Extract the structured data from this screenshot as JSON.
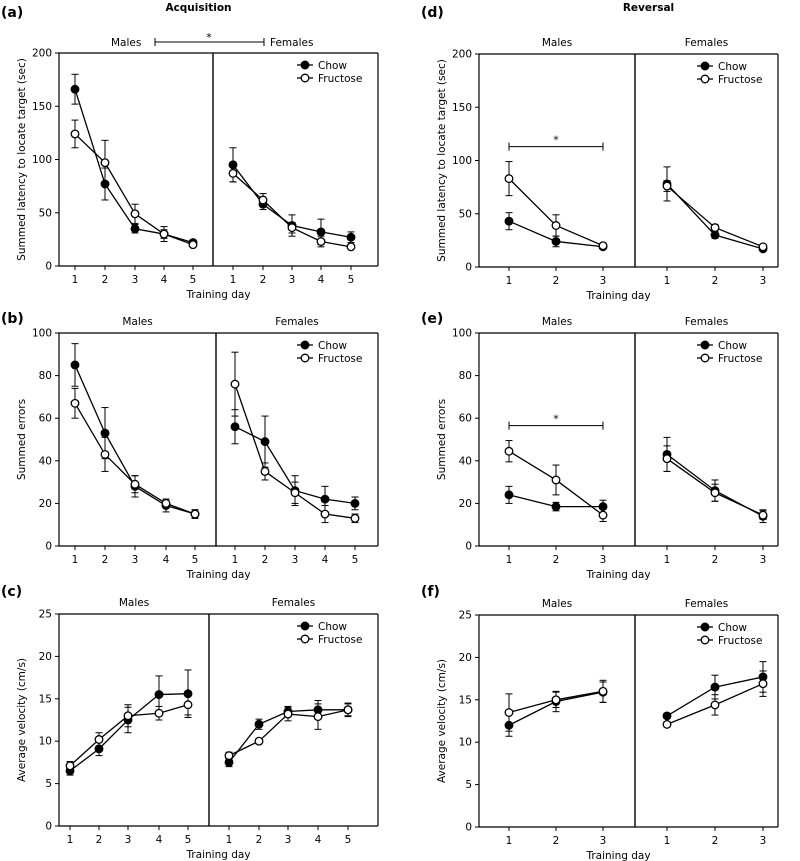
{
  "chart_data": [
    {
      "type": "line",
      "panel_label": "(a)",
      "title": "Acquisition",
      "groups": [
        "Males",
        "Females"
      ],
      "x": [
        1,
        2,
        3,
        4,
        5
      ],
      "xlabel": "Training day",
      "ylabel": "Summed latency to locate target (sec)",
      "ylim": [
        0,
        200
      ],
      "yticks": [
        0,
        50,
        100,
        150,
        200
      ],
      "legend": {
        "position": "top-right",
        "entries": [
          "Chow",
          "Fructose"
        ]
      },
      "significance": {
        "label": "*",
        "left": "Males",
        "right": "Females"
      },
      "series": [
        {
          "name": "Chow",
          "marker": "filled",
          "group": "Males",
          "values": [
            166,
            77,
            35,
            30,
            22
          ],
          "errors": [
            14,
            15,
            4,
            7,
            2
          ]
        },
        {
          "name": "Fructose",
          "marker": "open",
          "group": "Males",
          "values": [
            124,
            97,
            49,
            30,
            20
          ],
          "errors": [
            13,
            21,
            9,
            4,
            2
          ]
        },
        {
          "name": "Chow",
          "marker": "filled",
          "group": "Females",
          "values": [
            95,
            58,
            38,
            32,
            27
          ],
          "errors": [
            16,
            5,
            10,
            12,
            5
          ]
        },
        {
          "name": "Fructose",
          "marker": "open",
          "group": "Females",
          "values": [
            87,
            62,
            36,
            23,
            18
          ],
          "errors": [
            8,
            6,
            5,
            5,
            2
          ]
        }
      ]
    },
    {
      "type": "line",
      "panel_label": "(b)",
      "title": "",
      "groups": [
        "Males",
        "Females"
      ],
      "x": [
        1,
        2,
        3,
        4,
        5
      ],
      "xlabel": "Training day",
      "ylabel": "Summed errors",
      "ylim": [
        0,
        100
      ],
      "yticks": [
        0,
        20,
        40,
        60,
        80,
        100
      ],
      "legend": {
        "position": "top-right",
        "entries": [
          "Chow",
          "Fructose"
        ]
      },
      "series": [
        {
          "name": "Chow",
          "marker": "filled",
          "group": "Males",
          "values": [
            85,
            53,
            28,
            19,
            15
          ],
          "errors": [
            10,
            12,
            5,
            3,
            2
          ]
        },
        {
          "name": "Fructose",
          "marker": "open",
          "group": "Males",
          "values": [
            67,
            43,
            29,
            20,
            15
          ],
          "errors": [
            7,
            8,
            4,
            2,
            2
          ]
        },
        {
          "name": "Chow",
          "marker": "filled",
          "group": "Females",
          "values": [
            56,
            49,
            26,
            22,
            20
          ],
          "errors": [
            8,
            12,
            7,
            6,
            3
          ]
        },
        {
          "name": "Fructose",
          "marker": "open",
          "group": "Females",
          "values": [
            76,
            35,
            25,
            15,
            13
          ],
          "errors": [
            15,
            4,
            5,
            4,
            2
          ]
        }
      ]
    },
    {
      "type": "line",
      "panel_label": "(c)",
      "title": "",
      "groups": [
        "Males",
        "Females"
      ],
      "x": [
        1,
        2,
        3,
        4,
        5
      ],
      "xlabel": "Training day",
      "ylabel": "Average velocity (cm/s)",
      "ylim": [
        0,
        25
      ],
      "yticks": [
        0,
        5,
        10,
        15,
        20,
        25
      ],
      "legend": {
        "position": "top-right",
        "entries": [
          "Chow",
          "Fructose"
        ]
      },
      "series": [
        {
          "name": "Chow",
          "marker": "filled",
          "group": "Males",
          "values": [
            6.5,
            9.1,
            12.5,
            15.5,
            15.6
          ],
          "errors": [
            0.5,
            0.8,
            1.5,
            2.2,
            2.8
          ]
        },
        {
          "name": "Fructose",
          "marker": "open",
          "group": "Males",
          "values": [
            7.1,
            10.2,
            13.0,
            13.3,
            14.3
          ],
          "errors": [
            0.5,
            0.8,
            1.3,
            0.8,
            1.2
          ]
        },
        {
          "name": "Chow",
          "marker": "filled",
          "group": "Females",
          "values": [
            7.5,
            12.0,
            13.5,
            13.7,
            13.7
          ],
          "errors": [
            0.5,
            0.6,
            0.6,
            1.1,
            0.8
          ]
        },
        {
          "name": "Fructose",
          "marker": "open",
          "group": "Females",
          "values": [
            8.3,
            10.0,
            13.2,
            12.9,
            13.7
          ],
          "errors": [
            0.4,
            0.3,
            0.8,
            1.5,
            0.7
          ]
        }
      ]
    },
    {
      "type": "line",
      "panel_label": "(d)",
      "title": "Reversal",
      "groups": [
        "Males",
        "Females"
      ],
      "x": [
        1,
        2,
        3
      ],
      "xlabel": "Training day",
      "ylabel": "Summed latency to locate target (sec)",
      "ylim": [
        0,
        200
      ],
      "yticks": [
        0,
        50,
        100,
        150,
        200
      ],
      "legend": {
        "position": "top-right",
        "entries": [
          "Chow",
          "Fructose"
        ]
      },
      "significance": {
        "label": "*",
        "group": "Males",
        "from_x": 1,
        "to_x": 3
      },
      "series": [
        {
          "name": "Chow",
          "marker": "filled",
          "group": "Males",
          "values": [
            43,
            24,
            19
          ],
          "errors": [
            8,
            5,
            2
          ]
        },
        {
          "name": "Fructose",
          "marker": "open",
          "group": "Males",
          "values": [
            83,
            39,
            20
          ],
          "errors": [
            16,
            10,
            2
          ]
        },
        {
          "name": "Chow",
          "marker": "filled",
          "group": "Females",
          "values": [
            78,
            30,
            17
          ],
          "errors": [
            16,
            3,
            2
          ]
        },
        {
          "name": "Fructose",
          "marker": "open",
          "group": "Females",
          "values": [
            76,
            37,
            19
          ],
          "errors": [
            5,
            3,
            2
          ]
        }
      ]
    },
    {
      "type": "line",
      "panel_label": "(e)",
      "title": "",
      "groups": [
        "Males",
        "Females"
      ],
      "x": [
        1,
        2,
        3
      ],
      "xlabel": "Training day",
      "ylabel": "Summed errors",
      "ylim": [
        0,
        100
      ],
      "yticks": [
        0,
        20,
        40,
        60,
        80,
        100
      ],
      "legend": {
        "position": "top-right",
        "entries": [
          "Chow",
          "Fructose"
        ]
      },
      "significance": {
        "label": "*",
        "group": "Males",
        "from_x": 1,
        "to_x": 3
      },
      "series": [
        {
          "name": "Chow",
          "marker": "filled",
          "group": "Males",
          "values": [
            24,
            18.5,
            18.5
          ],
          "errors": [
            4,
            2,
            3
          ]
        },
        {
          "name": "Fructose",
          "marker": "open",
          "group": "Males",
          "values": [
            44.5,
            31,
            14.5
          ],
          "errors": [
            5,
            7,
            3
          ]
        },
        {
          "name": "Chow",
          "marker": "filled",
          "group": "Females",
          "values": [
            43,
            26,
            14
          ],
          "errors": [
            8,
            5,
            3
          ]
        },
        {
          "name": "Fructose",
          "marker": "open",
          "group": "Females",
          "values": [
            41,
            25,
            14.5
          ],
          "errors": [
            6,
            4,
            2
          ]
        }
      ]
    },
    {
      "type": "line",
      "panel_label": "(f)",
      "title": "",
      "groups": [
        "Males",
        "Females"
      ],
      "x": [
        1,
        2,
        3
      ],
      "xlabel": "Training day",
      "ylabel": "Average velocity (cm/s)",
      "ylim": [
        0,
        25
      ],
      "yticks": [
        0,
        5,
        10,
        15,
        20,
        25
      ],
      "legend": {
        "position": "top-right",
        "entries": [
          "Chow",
          "Fructose"
        ]
      },
      "series": [
        {
          "name": "Chow",
          "marker": "filled",
          "group": "Males",
          "values": [
            12.0,
            14.8,
            15.9
          ],
          "errors": [
            1.3,
            1.2,
            1.2
          ]
        },
        {
          "name": "Fructose",
          "marker": "open",
          "group": "Males",
          "values": [
            13.5,
            15.0,
            16.0
          ],
          "errors": [
            2.2,
            0.9,
            1.3
          ]
        },
        {
          "name": "Chow",
          "marker": "filled",
          "group": "Females",
          "values": [
            13.1,
            16.5,
            17.7
          ],
          "errors": [
            0.3,
            1.4,
            1.8
          ]
        },
        {
          "name": "Fructose",
          "marker": "open",
          "group": "Females",
          "values": [
            12.1,
            14.4,
            16.9
          ],
          "errors": [
            0.3,
            1.2,
            1.5
          ]
        }
      ]
    }
  ]
}
